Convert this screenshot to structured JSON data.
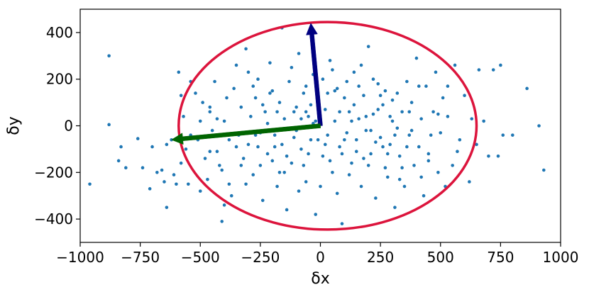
{
  "chart_data": {
    "type": "scatter",
    "title": "",
    "xlabel": "δx",
    "ylabel": "δy",
    "xlim": [
      -1000,
      1000
    ],
    "ylim": [
      -500,
      500
    ],
    "xticks": [
      -1000,
      -750,
      -500,
      -250,
      0,
      250,
      500,
      750,
      1000
    ],
    "xtick_labels": [
      "−1000",
      "−750",
      "−500",
      "−250",
      "0",
      "250",
      "500",
      "750",
      "1000"
    ],
    "yticks": [
      -400,
      -200,
      0,
      200,
      400
    ],
    "ytick_labels": [
      "−400",
      "−200",
      "0",
      "200",
      "400"
    ],
    "grid": false,
    "scatter_color": "#1f77b4",
    "points": [
      [
        -960,
        -250
      ],
      [
        -880,
        300
      ],
      [
        -880,
        5
      ],
      [
        -840,
        -150
      ],
      [
        -830,
        -90
      ],
      [
        -810,
        -180
      ],
      [
        -760,
        -55
      ],
      [
        -740,
        -180
      ],
      [
        -710,
        -270
      ],
      [
        -700,
        -90
      ],
      [
        -680,
        -200
      ],
      [
        -660,
        -190
      ],
      [
        -650,
        -240
      ],
      [
        -640,
        -350
      ],
      [
        -640,
        -80
      ],
      [
        -620,
        -60
      ],
      [
        -610,
        -210
      ],
      [
        -600,
        -250
      ],
      [
        -590,
        230
      ],
      [
        -580,
        -160
      ],
      [
        -570,
        40
      ],
      [
        -560,
        -100
      ],
      [
        -550,
        -250
      ],
      [
        -540,
        -40
      ],
      [
        -520,
        140
      ],
      [
        -510,
        -60
      ],
      [
        -500,
        -280
      ],
      [
        -490,
        100
      ],
      [
        -480,
        -140
      ],
      [
        -470,
        -230
      ],
      [
        -460,
        60
      ],
      [
        -450,
        -20
      ],
      [
        -440,
        190
      ],
      [
        -430,
        -110
      ],
      [
        -410,
        -190
      ],
      [
        -410,
        -410
      ],
      [
        -400,
        20
      ],
      [
        -390,
        120
      ],
      [
        -380,
        -60
      ],
      [
        -370,
        -300
      ],
      [
        -360,
        160
      ],
      [
        -350,
        260
      ],
      [
        -340,
        -40
      ],
      [
        -330,
        80
      ],
      [
        -320,
        -140
      ],
      [
        -310,
        330
      ],
      [
        -300,
        -80
      ],
      [
        -290,
        40
      ],
      [
        -280,
        -210
      ],
      [
        -270,
        120
      ],
      [
        -260,
        200
      ],
      [
        -250,
        -30
      ],
      [
        -240,
        -320
      ],
      [
        -230,
        60
      ],
      [
        -220,
        -120
      ],
      [
        -210,
        270
      ],
      [
        -200,
        150
      ],
      [
        -190,
        -40
      ],
      [
        -180,
        -260
      ],
      [
        -170,
        100
      ],
      [
        -160,
        420
      ],
      [
        -160,
        -80
      ],
      [
        -150,
        30
      ],
      [
        -140,
        -360
      ],
      [
        -130,
        190
      ],
      [
        -120,
        -160
      ],
      [
        -110,
        60
      ],
      [
        -100,
        -20
      ],
      [
        -90,
        310
      ],
      [
        -80,
        -100
      ],
      [
        -70,
        140
      ],
      [
        -60,
        -240
      ],
      [
        -50,
        40
      ],
      [
        -40,
        -60
      ],
      [
        -30,
        220
      ],
      [
        -20,
        -380
      ],
      [
        -10,
        110
      ],
      [
        10,
        -130
      ],
      [
        20,
        70
      ],
      [
        30,
        -40
      ],
      [
        40,
        280
      ],
      [
        50,
        -200
      ],
      [
        60,
        20
      ],
      [
        70,
        160
      ],
      [
        80,
        -90
      ],
      [
        90,
        -420
      ],
      [
        100,
        120
      ],
      [
        110,
        -30
      ],
      [
        120,
        60
      ],
      [
        130,
        -160
      ],
      [
        140,
        230
      ],
      [
        150,
        -60
      ],
      [
        160,
        30
      ],
      [
        170,
        -260
      ],
      [
        180,
        130
      ],
      [
        190,
        -20
      ],
      [
        200,
        340
      ],
      [
        210,
        -120
      ],
      [
        220,
        50
      ],
      [
        230,
        -310
      ],
      [
        240,
        180
      ],
      [
        250,
        -50
      ],
      [
        260,
        90
      ],
      [
        270,
        -180
      ],
      [
        280,
        -220
      ],
      [
        290,
        -80
      ],
      [
        300,
        20
      ],
      [
        310,
        -350
      ],
      [
        320,
        140
      ],
      [
        330,
        -130
      ],
      [
        340,
        60
      ],
      [
        350,
        -260
      ],
      [
        360,
        190
      ],
      [
        370,
        -40
      ],
      [
        380,
        100
      ],
      [
        390,
        -170
      ],
      [
        400,
        290
      ],
      [
        410,
        -90
      ],
      [
        420,
        30
      ],
      [
        430,
        -300
      ],
      [
        440,
        170
      ],
      [
        450,
        -120
      ],
      [
        470,
        60
      ],
      [
        480,
        230
      ],
      [
        490,
        -200
      ],
      [
        500,
        -30
      ],
      [
        510,
        120
      ],
      [
        520,
        -260
      ],
      [
        530,
        40
      ],
      [
        550,
        -170
      ],
      [
        560,
        260
      ],
      [
        580,
        -60
      ],
      [
        600,
        130
      ],
      [
        620,
        -240
      ],
      [
        630,
        30
      ],
      [
        650,
        -80
      ],
      [
        660,
        240
      ],
      [
        680,
        20
      ],
      [
        700,
        -130
      ],
      [
        720,
        240
      ],
      [
        740,
        -130
      ],
      [
        750,
        260
      ],
      [
        760,
        -40
      ],
      [
        800,
        -40
      ],
      [
        860,
        160
      ],
      [
        910,
        0
      ],
      [
        930,
        -190
      ],
      [
        -460,
        80
      ],
      [
        -420,
        -170
      ],
      [
        -380,
        -250
      ],
      [
        -300,
        230
      ],
      [
        -260,
        -90
      ],
      [
        -220,
        10
      ],
      [
        -180,
        60
      ],
      [
        -140,
        -130
      ],
      [
        -100,
        80
      ],
      [
        -60,
        170
      ],
      [
        -20,
        20
      ],
      [
        20,
        -80
      ],
      [
        60,
        150
      ],
      [
        100,
        -60
      ],
      [
        140,
        90
      ],
      [
        180,
        -140
      ],
      [
        220,
        200
      ],
      [
        260,
        -90
      ],
      [
        300,
        110
      ],
      [
        340,
        -180
      ],
      [
        380,
        -20
      ],
      [
        420,
        -220
      ],
      [
        460,
        -40
      ],
      [
        -200,
        -150
      ],
      [
        -150,
        -200
      ],
      [
        -120,
        250
      ],
      [
        -70,
        -170
      ],
      [
        -40,
        90
      ],
      [
        0,
        -260
      ],
      [
        30,
        140
      ],
      [
        70,
        -290
      ],
      [
        110,
        190
      ],
      [
        150,
        -110
      ],
      [
        190,
        40
      ],
      [
        230,
        -70
      ],
      [
        270,
        150
      ],
      [
        310,
        -40
      ],
      [
        -330,
        -170
      ],
      [
        -270,
        -40
      ],
      [
        -240,
        90
      ],
      [
        -190,
        -90
      ],
      [
        -110,
        -50
      ],
      [
        -80,
        30
      ],
      [
        -50,
        -120
      ],
      [
        -30,
        10
      ],
      [
        10,
        200
      ],
      [
        40,
        -150
      ],
      [
        80,
        60
      ],
      [
        120,
        -210
      ],
      [
        160,
        170
      ],
      [
        200,
        -170
      ],
      [
        240,
        70
      ],
      [
        280,
        -120
      ],
      [
        320,
        -10
      ],
      [
        360,
        -90
      ],
      [
        -580,
        130
      ],
      [
        -540,
        190
      ],
      [
        -500,
        20
      ],
      [
        -460,
        -110
      ],
      [
        -430,
        30
      ],
      [
        -400,
        -340
      ],
      [
        -350,
        -90
      ],
      [
        -310,
        -250
      ],
      [
        -280,
        170
      ],
      [
        -250,
        -170
      ],
      [
        -210,
        140
      ],
      [
        -170,
        -200
      ],
      [
        -130,
        -10
      ],
      [
        -90,
        -280
      ],
      [
        -60,
        60
      ],
      [
        -10,
        -60
      ],
      [
        50,
        240
      ],
      [
        90,
        -120
      ],
      [
        130,
        20
      ],
      [
        170,
        260
      ],
      [
        210,
        -20
      ],
      [
        250,
        130
      ],
      [
        290,
        40
      ],
      [
        330,
        -230
      ],
      [
        370,
        60
      ],
      [
        410,
        170
      ],
      [
        450,
        -150
      ],
      [
        490,
        50
      ],
      [
        530,
        170
      ],
      [
        570,
        -110
      ]
    ],
    "ellipse": {
      "cx": 30,
      "cy": 0,
      "rx": 620,
      "ry": 445,
      "color": "#dc143c"
    },
    "arrows": [
      {
        "from": [
          0,
          0
        ],
        "to": [
          -40,
          440
        ],
        "color": "#000080"
      },
      {
        "from": [
          0,
          0
        ],
        "to": [
          -620,
          -60
        ],
        "color": "#006400"
      }
    ]
  }
}
